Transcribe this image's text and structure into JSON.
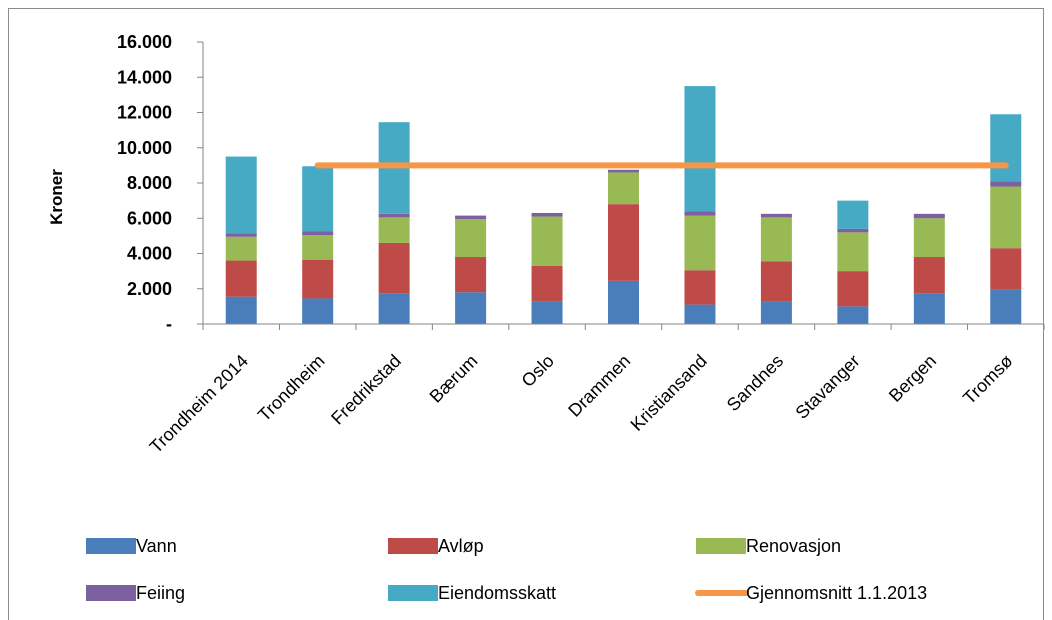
{
  "chart_data": {
    "type": "bar",
    "stacked": true,
    "ylabel": "Kroner",
    "ylim": [
      0,
      16000
    ],
    "y_tick_labels": [
      "-",
      "2.000",
      "4.000",
      "6.000",
      "8.000",
      "10.000",
      "12.000",
      "14.000",
      "16.000"
    ],
    "grid": false,
    "legend_position": "bottom",
    "categories": [
      "Trondheim 2014",
      "Trondheim",
      "Fredrikstad",
      "Bærum",
      "Oslo",
      "Drammen",
      "Kristiansand",
      "Sandnes",
      "Stavanger",
      "Bergen",
      "Tromsø"
    ],
    "series": [
      {
        "name": "Vann",
        "color": "#4a7ebb",
        "values": [
          1550,
          1450,
          1750,
          1800,
          1300,
          2450,
          1100,
          1300,
          1000,
          1750,
          1950
        ]
      },
      {
        "name": "Avløp",
        "color": "#be4b48",
        "values": [
          2050,
          2200,
          2850,
          2000,
          2000,
          4350,
          1950,
          2250,
          2000,
          2050,
          2350
        ]
      },
      {
        "name": "Renovasjon",
        "color": "#98b954",
        "values": [
          1350,
          1400,
          1450,
          2150,
          2800,
          1800,
          3100,
          2500,
          2200,
          2200,
          3500
        ]
      },
      {
        "name": "Feiing",
        "color": "#7d60a0",
        "values": [
          200,
          200,
          200,
          200,
          200,
          150,
          250,
          200,
          200,
          250,
          300
        ]
      },
      {
        "name": "Eiendomsskatt",
        "color": "#46aac5",
        "values": [
          4350,
          3700,
          5200,
          0,
          0,
          0,
          7100,
          0,
          1600,
          0,
          3800
        ]
      }
    ],
    "reference_line": {
      "name": "Gjennomsnitt 1.1.2013",
      "color": "#f79646",
      "value": 9000
    }
  }
}
